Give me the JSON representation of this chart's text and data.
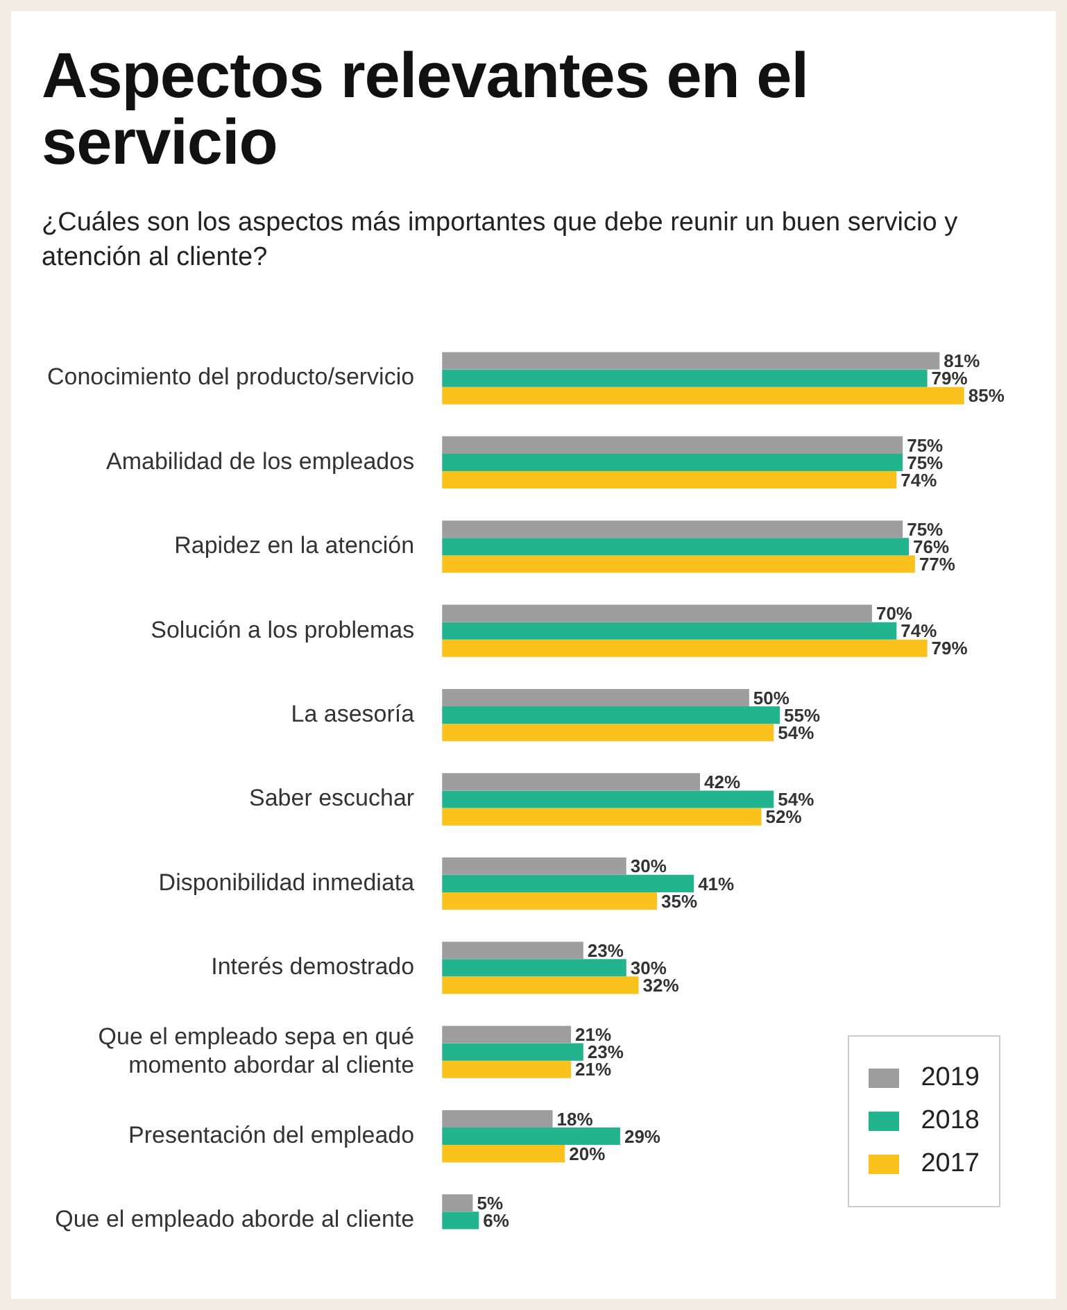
{
  "chart_data": {
    "type": "bar",
    "orientation": "horizontal",
    "title": "Aspectos relevantes en el servicio",
    "subtitle": "¿Cuáles son los aspectos más importantes que debe reunir un buen servicio y atención al cliente?",
    "categories": [
      "Conocimiento del producto/servicio",
      "Amabilidad de los empleados",
      "Rapidez en la atención",
      "Solución a los problemas",
      "La asesoría",
      "Saber escuchar",
      "Disponibilidad inmediata",
      "Interés demostrado",
      "Que el empleado sepa en qué momento abordar al cliente",
      "Presentación del empleado",
      "Que el empleado aborde al cliente"
    ],
    "series": [
      {
        "name": "2019",
        "color": "#9e9e9e",
        "values": [
          81,
          75,
          75,
          70,
          50,
          42,
          30,
          23,
          21,
          18,
          5
        ],
        "value_labels": [
          "81%",
          "75%",
          "75%",
          "70%",
          "50%",
          "42%",
          "30%",
          "23%",
          "21%",
          "18%",
          "5%"
        ]
      },
      {
        "name": "2018",
        "color": "#22b48f",
        "values": [
          79,
          75,
          76,
          74,
          55,
          54,
          41,
          30,
          23,
          29,
          6
        ],
        "value_labels": [
          "79%",
          "75%",
          "76%",
          "74%",
          "55%",
          "54%",
          "41%",
          "30%",
          "23%",
          "29%",
          "6%"
        ]
      },
      {
        "name": "2017",
        "color": "#fbc11c",
        "values": [
          85,
          74,
          77,
          79,
          54,
          52,
          35,
          32,
          21,
          20,
          null
        ],
        "value_labels": [
          "85%",
          "74%",
          "77%",
          "79%",
          "54%",
          "52%",
          "35%",
          "32%",
          "21%",
          "20%",
          null
        ]
      }
    ],
    "tick_labels": "y",
    "legend": "bottom right"
  }
}
